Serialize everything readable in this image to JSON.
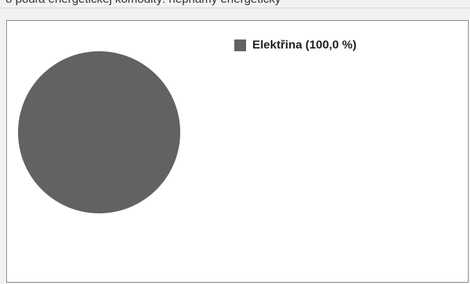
{
  "top_strip_text": "o podľa energetickej komodity: nepriamy energetický",
  "chart_data": {
    "type": "pie",
    "title": "",
    "slices": [
      {
        "label": "Elektřina (100,0 %)",
        "value": 100.0,
        "color": "#626262"
      }
    ],
    "legend": "top-right"
  },
  "colors": {
    "page_background": "#f2f2f2",
    "plot_background": "#ffffff",
    "frame_border": "#7f7f7f"
  }
}
